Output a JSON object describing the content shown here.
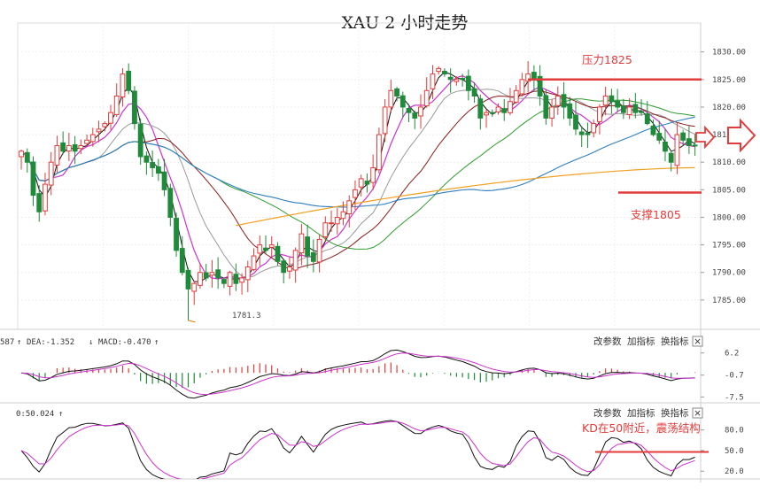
{
  "chart_data": {
    "type": "candlestick",
    "title": "XAU 2 小时走势",
    "main_axis": {
      "ylim": [
        1780,
        1833
      ],
      "ticks": [
        "1830.00",
        "1825.00",
        "1820.00",
        "1815.00",
        "1810.00",
        "1805.00",
        "1800.00",
        "1795.00",
        "1790.00",
        "1785.00"
      ],
      "tick_values": [
        1830,
        1825,
        1820,
        1815,
        1810,
        1805,
        1800,
        1795,
        1790,
        1785
      ]
    },
    "low_label": "1781.3",
    "low_value": 1781.3,
    "closes": [
      1812,
      1810,
      1804,
      1801,
      1806,
      1810,
      1813,
      1812,
      1813,
      1812,
      1813,
      1814,
      1815,
      1816,
      1817,
      1819,
      1822,
      1826,
      1823,
      1817,
      1811,
      1810,
      1809,
      1808,
      1805,
      1800,
      1794,
      1790,
      1787,
      1788,
      1790,
      1789,
      1790,
      1789,
      1788,
      1790,
      1788,
      1789,
      1791,
      1793,
      1795,
      1794,
      1795,
      1792,
      1790,
      1791,
      1794,
      1797,
      1793,
      1792,
      1796,
      1799,
      1799,
      1800,
      1801,
      1803,
      1805,
      1807,
      1806,
      1809,
      1815,
      1820,
      1823,
      1822,
      1820,
      1819,
      1818,
      1820,
      1823,
      1826,
      1827,
      1826,
      1825,
      1825,
      1825,
      1823,
      1822,
      1818,
      1819,
      1819,
      1820,
      1819,
      1821,
      1823,
      1825,
      1826,
      1825,
      1822,
      1818,
      1820,
      1822,
      1820,
      1818,
      1816,
      1815,
      1815,
      1817,
      1820,
      1822,
      1821,
      1820,
      1819,
      1820,
      1819,
      1819,
      1817,
      1815,
      1814,
      1812,
      1810,
      1815,
      1814,
      1813,
      1813
    ],
    "resistance": {
      "label": "压力1825",
      "value": 1825
    },
    "support": {
      "label": "支撑1805",
      "value": 1804.5
    },
    "ma_yellow": {
      "start_value": 1798.5,
      "end_value": 1809
    },
    "macd": {
      "legend": {
        "left": "587",
        "dea": "DEA:-1.352",
        "macd": "MACD:-0.470"
      },
      "ylim": [
        -8.5,
        7.5
      ],
      "ticks": [
        "6.2",
        "-0.7",
        "-7.5"
      ],
      "tick_values": [
        6.2,
        -0.7,
        -7.5
      ]
    },
    "kd": {
      "legend": "0:50.024",
      "ylim": [
        10,
        95
      ],
      "ticks": [
        "80.0",
        "50.0",
        "20.0"
      ],
      "tick_values": [
        80,
        50,
        20
      ],
      "annotation": "KD在50附近，震荡结构",
      "level": 48
    },
    "buttons": [
      "改参数",
      "加指标",
      "换指标"
    ],
    "close_symbol": "×",
    "colors": {
      "up": "#e23b3b",
      "down": "#1e8a3a",
      "accent": "#e23b3b"
    }
  }
}
